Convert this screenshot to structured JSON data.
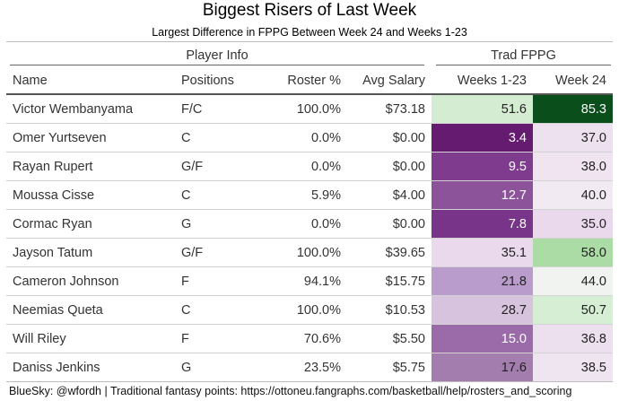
{
  "header": {
    "title": "Biggest Risers of Last Week",
    "subtitle": "Largest Difference in FPPG Between Week 24 and Weeks 1-23"
  },
  "spanners": {
    "player_info": "Player Info",
    "trad_fppg": "Trad FPPG"
  },
  "columns": {
    "name": "Name",
    "positions": "Positions",
    "roster_pct": "Roster %",
    "avg_salary": "Avg Salary",
    "weeks_1_23": "Weeks 1-23",
    "week_24": "Week 24"
  },
  "rows": [
    {
      "name": "Victor Wembanyama",
      "pos": "F/C",
      "roster": "100.0%",
      "salary": "$73.18",
      "w123": "51.6",
      "w24": "85.3",
      "w123_bg": "#d4edd2",
      "w123_fg": "#222222",
      "w24_bg": "#0a4e1c",
      "w24_fg": "#ffffff"
    },
    {
      "name": "Omer Yurtseven",
      "pos": "C",
      "roster": "0.0%",
      "salary": "$0.00",
      "w123": "3.4",
      "w24": "37.0",
      "w123_bg": "#651b70",
      "w123_fg": "#ffffff",
      "w24_bg": "#eee1ef",
      "w24_fg": "#222222"
    },
    {
      "name": "Rayan Rupert",
      "pos": "G/F",
      "roster": "0.0%",
      "salary": "$0.00",
      "w123": "9.5",
      "w24": "38.0",
      "w123_bg": "#7f3c8e",
      "w123_fg": "#ffffff",
      "w24_bg": "#efe4f0",
      "w24_fg": "#222222"
    },
    {
      "name": "Moussa Cisse",
      "pos": "C",
      "roster": "5.9%",
      "salary": "$4.00",
      "w123": "12.7",
      "w24": "40.0",
      "w123_bg": "#8c529a",
      "w123_fg": "#ffffff",
      "w24_bg": "#f1eaf2",
      "w24_fg": "#222222"
    },
    {
      "name": "Cormac Ryan",
      "pos": "G",
      "roster": "0.0%",
      "salary": "$0.00",
      "w123": "7.8",
      "w24": "35.0",
      "w123_bg": "#783489",
      "w123_fg": "#ffffff",
      "w24_bg": "#ead9ec",
      "w24_fg": "#222222"
    },
    {
      "name": "Jayson Tatum",
      "pos": "G/F",
      "roster": "100.0%",
      "salary": "$39.65",
      "w123": "35.1",
      "w24": "58.0",
      "w123_bg": "#ead9ec",
      "w123_fg": "#222222",
      "w24_bg": "#abdca5",
      "w24_fg": "#222222"
    },
    {
      "name": "Cameron Johnson",
      "pos": "F",
      "roster": "94.1%",
      "salary": "$15.75",
      "w123": "21.8",
      "w24": "44.0",
      "w123_bg": "#b99ccb",
      "w123_fg": "#222222",
      "w24_bg": "#f0f3ef",
      "w24_fg": "#222222"
    },
    {
      "name": "Neemias Queta",
      "pos": "C",
      "roster": "100.0%",
      "salary": "$10.53",
      "w123": "28.7",
      "w24": "50.7",
      "w123_bg": "#d8c3df",
      "w123_fg": "#222222",
      "w24_bg": "#d6eed3",
      "w24_fg": "#222222"
    },
    {
      "name": "Will Riley",
      "pos": "F",
      "roster": "70.6%",
      "salary": "$5.50",
      "w123": "15.0",
      "w24": "36.8",
      "w123_bg": "#9a6aa9",
      "w123_fg": "#ffffff",
      "w24_bg": "#ecdfee",
      "w24_fg": "#222222"
    },
    {
      "name": "Daniss Jenkins",
      "pos": "G",
      "roster": "23.5%",
      "salary": "$5.75",
      "w123": "17.6",
      "w24": "38.5",
      "w123_bg": "#a27dae",
      "w123_fg": "#222222",
      "w24_bg": "#efe5f0",
      "w24_fg": "#222222"
    }
  ],
  "footer": {
    "text": "BlueSky: @wfordh | Traditional fantasy points: https://ottoneu.fangraphs.com/basketball/help/rosters_and_scoring"
  }
}
